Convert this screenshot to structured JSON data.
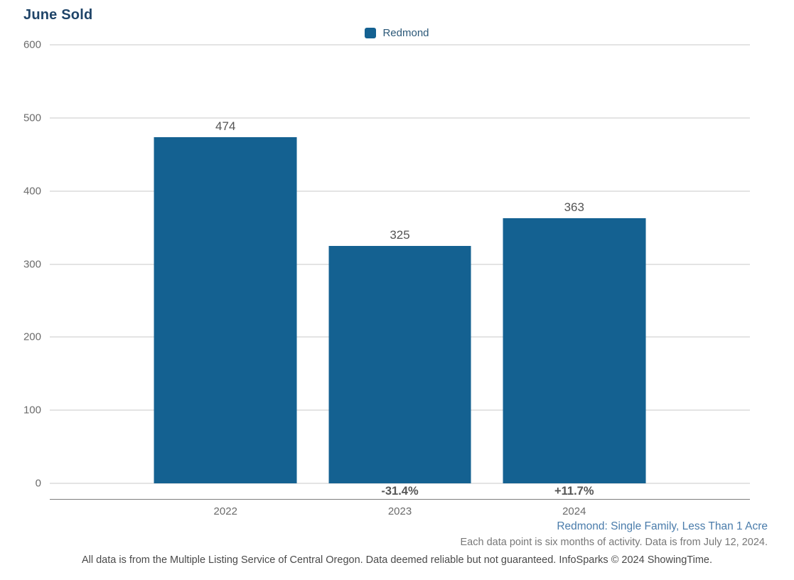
{
  "title": "June Sold",
  "legend": {
    "label": "Redmond",
    "swatch_color": "#146191"
  },
  "chart_data": {
    "type": "bar",
    "title": "June Sold",
    "categories": [
      "2022",
      "2023",
      "2024"
    ],
    "series": [
      {
        "name": "Redmond",
        "values": [
          474,
          325,
          363
        ]
      }
    ],
    "value_labels": [
      "474",
      "325",
      "363"
    ],
    "pct_change_labels": [
      "",
      "-31.4%",
      "+11.7%"
    ],
    "xlabel": "",
    "ylabel": "",
    "ylim": [
      0,
      600
    ],
    "yticks": [
      0,
      100,
      200,
      300,
      400,
      500,
      600
    ],
    "grid": true,
    "legend_position": "top-center",
    "bar_color": "#146191"
  },
  "footnotes": {
    "segment": "Redmond: Single Family, Less Than 1 Acre",
    "activity_note": "Each data point is six months of activity. Data is from July 12, 2024.",
    "disclaimer": "All data is from the Multiple Listing Service of Central Oregon. Data deemed reliable but not guaranteed. InfoSparks © 2024 ShowingTime."
  }
}
